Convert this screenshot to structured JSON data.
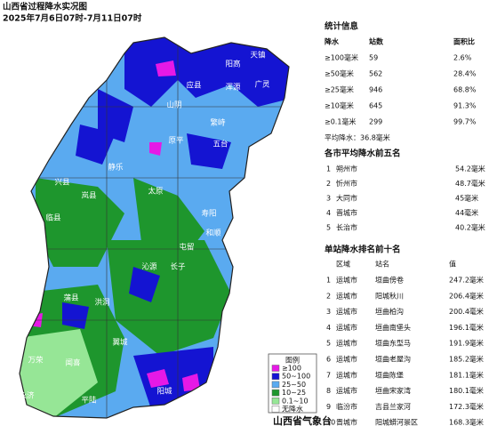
{
  "header": {
    "title": "山西省过程降水实况图",
    "subtitle": "2025年7月6日07时-7月11日07时"
  },
  "stats": {
    "title": "统计信息",
    "columns": [
      "降水",
      "站数",
      "面积比"
    ],
    "rows": [
      [
        "≥100毫米",
        "59",
        "2.6%"
      ],
      [
        "≥50毫米",
        "562",
        "28.4%"
      ],
      [
        "≥25毫米",
        "946",
        "68.8%"
      ],
      [
        "≥10毫米",
        "645",
        "91.3%"
      ],
      [
        "≥0.1毫米",
        "299",
        "99.7%"
      ]
    ],
    "average": "平均降水：36.8毫米"
  },
  "city_top5": {
    "title": "各市平均降水前五名",
    "rows": [
      [
        "1",
        "朔州市",
        "54.2毫米"
      ],
      [
        "2",
        "忻州市",
        "48.7毫米"
      ],
      [
        "3",
        "大同市",
        "45毫米"
      ],
      [
        "4",
        "晋城市",
        "44毫米"
      ],
      [
        "5",
        "长治市",
        "40.2毫米"
      ]
    ]
  },
  "station_top10": {
    "title": "单站降水排名前十名",
    "columns": [
      "区域",
      "站名",
      "值"
    ],
    "rows": [
      [
        "1",
        "运城市",
        "垣曲傍卷",
        "247.2毫米"
      ],
      [
        "2",
        "运城市",
        "阳城秋川",
        "206.4毫米"
      ],
      [
        "3",
        "运城市",
        "垣曲柏沟",
        "200.4毫米"
      ],
      [
        "4",
        "运城市",
        "垣曲南堡头",
        "196.1毫米"
      ],
      [
        "5",
        "运城市",
        "垣曲东型马",
        "191.9毫米"
      ],
      [
        "6",
        "运城市",
        "垣曲老屋沟",
        "185.2毫米"
      ],
      [
        "7",
        "运城市",
        "垣曲陈堡",
        "181.1毫米"
      ],
      [
        "8",
        "运城市",
        "垣曲宋家湾",
        "180.1毫米"
      ],
      [
        "9",
        "临汾市",
        "吉县兰家河",
        "172.3毫米"
      ],
      [
        "10",
        "晋城市",
        "阳城蟒河景区",
        "168.3毫米"
      ]
    ]
  },
  "map": {
    "labels": [
      "天镇",
      "阳高",
      "广灵",
      "浑源",
      "应县",
      "山阴",
      "繁峙",
      "五台",
      "原平",
      "静乐",
      "兴县",
      "临县",
      "岚县",
      "太原",
      "寿阳",
      "和顺",
      "沁源",
      "长子",
      "屯留",
      "蒲县",
      "洪洞",
      "翼城",
      "万荣",
      "闻喜",
      "永济",
      "平陆",
      "阳城"
    ]
  },
  "legend": {
    "title": "图例",
    "items": [
      {
        "label": "≥100",
        "color": "#e619e6"
      },
      {
        "label": "50~100",
        "color": "#1414d2"
      },
      {
        "label": "25~50",
        "color": "#5aaaf0"
      },
      {
        "label": "10~25",
        "color": "#1e962d"
      },
      {
        "label": "0.1~10",
        "color": "#96e696"
      },
      {
        "label": "无降水",
        "color": "#ffffff"
      }
    ]
  },
  "footer": "山西省气象台"
}
